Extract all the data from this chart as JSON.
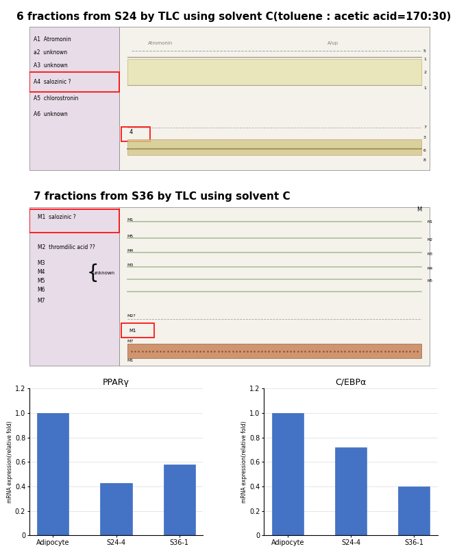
{
  "title1": "6 fractions from S24 by TLC using solvent C(toluene : acetic acid=170:30)",
  "title2": "7 fractions from S36 by TLC using solvent C",
  "ppar_title": "PPARγ",
  "cebp_title": "C/EBPα",
  "categories": [
    "Adipocyte",
    "S24-4",
    "S36-1"
  ],
  "ppar_values": [
    1.0,
    0.43,
    0.58
  ],
  "cebp_values": [
    1.0,
    0.72,
    0.4
  ],
  "bar_color": "#4472C4",
  "ylabel": "mRNA expression(relative fold)",
  "ylim": [
    0,
    1.2
  ],
  "yticks": [
    0,
    0.2,
    0.4,
    0.6,
    0.8,
    1.0,
    1.2
  ],
  "photo1_bg": "#f0eae8",
  "photo2_bg": "#f0eae8",
  "title_fontsize": 11,
  "axis_fontsize": 7,
  "bar_chart_title_fontsize": 9,
  "fig_bg": "#ffffff"
}
